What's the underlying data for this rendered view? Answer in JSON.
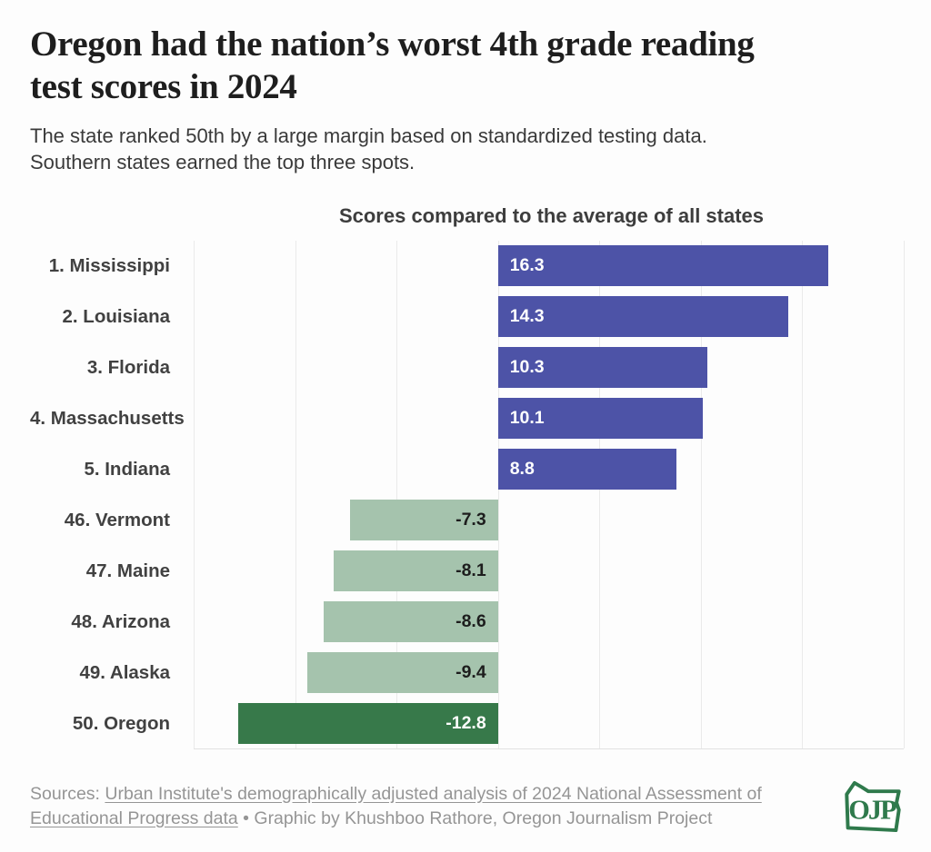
{
  "header": {
    "title_lines": [
      "Oregon had the nation’s worst 4th grade reading",
      "test scores in 2024"
    ],
    "subtitle_lines": [
      "The state ranked 50th by a large margin based on standardized testing data.",
      "Southern states earned the top three spots."
    ]
  },
  "chart_data": {
    "type": "bar",
    "orientation": "horizontal",
    "title": "Scores compared to the average of all states",
    "categories": [
      "1. Mississippi",
      "2. Louisiana",
      "3. Florida",
      "4. Massachusetts",
      "5. Indiana",
      "46. Vermont",
      "47. Maine",
      "48. Arizona",
      "49. Alaska",
      "50. Oregon"
    ],
    "values": [
      16.3,
      14.3,
      10.3,
      10.1,
      8.8,
      -7.3,
      -8.1,
      -8.6,
      -9.4,
      -12.8
    ],
    "xlim": [
      -15,
      20
    ],
    "gridlines": [
      -15,
      -10,
      -5,
      0,
      5,
      10,
      15,
      20
    ],
    "grid": true,
    "tick_labels_shown": false,
    "legend": "none",
    "highlight_index": 9,
    "colors": {
      "positive": "#4d53a7",
      "negative": "#a5c3ad",
      "highlight": "#37794a",
      "gridline": "#eaeaea",
      "value_label_on_dark": "#ffffff",
      "value_label_on_light": "#1d1d1d"
    }
  },
  "footer": {
    "sources_prefix": "Sources: ",
    "source_link": "Urban Institute's demographically adjusted analysis of 2024 National Assessment of Educational Progress data",
    "credit": " • Graphic by Khushboo Rathore, Oregon Journalism Project",
    "logo_text": "OJP",
    "logo_color": "#2f7a4c"
  }
}
